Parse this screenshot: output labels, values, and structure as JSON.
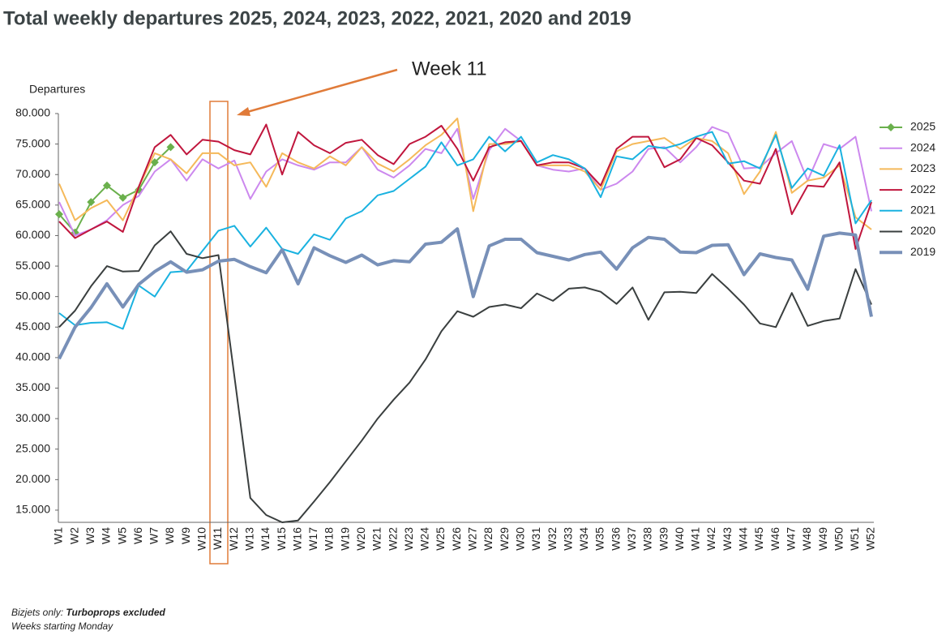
{
  "chart_data": {
    "type": "line",
    "title": "Total weekly departures 2025, 2024, 2023, 2022, 2021, 2020 and 2019",
    "y_label": "Departures",
    "annotation": "Week 11",
    "footnote": {
      "prefix": "Bizjets only:",
      "emphasis": "Turboprops excluded",
      "line2": "Weeks starting Monday"
    },
    "categories": [
      "W1",
      "W2",
      "W3",
      "W4",
      "W5",
      "W6",
      "W7",
      "W8",
      "W9",
      "W10",
      "W11",
      "W12",
      "W13",
      "W14",
      "W15",
      "W16",
      "W17",
      "W18",
      "W19",
      "W20",
      "W21",
      "W22",
      "W23",
      "W24",
      "W25",
      "W26",
      "W27",
      "W28",
      "W29",
      "W30",
      "W31",
      "W32",
      "W33",
      "W34",
      "W35",
      "W36",
      "W37",
      "W38",
      "W39",
      "W40",
      "W41",
      "W42",
      "W43",
      "W44",
      "W45",
      "W46",
      "W47",
      "W48",
      "W49",
      "W50",
      "W51",
      "W52"
    ],
    "ylim": [
      13000,
      80000
    ],
    "yticks": [
      {
        "value": 15000,
        "label": "15.000"
      },
      {
        "value": 20000,
        "label": "20.000"
      },
      {
        "value": 25000,
        "label": "25.000"
      },
      {
        "value": 30000,
        "label": "30.000"
      },
      {
        "value": 35000,
        "label": "35.000"
      },
      {
        "value": 40000,
        "label": "40.000"
      },
      {
        "value": 45000,
        "label": "45.000"
      },
      {
        "value": 50000,
        "label": "50.000"
      },
      {
        "value": 55000,
        "label": "55.000"
      },
      {
        "value": 60000,
        "label": "60.000"
      },
      {
        "value": 65000,
        "label": "65.000"
      },
      {
        "value": 70000,
        "label": "70.000"
      },
      {
        "value": 75000,
        "label": "75.000"
      },
      {
        "value": 80000,
        "label": "80.000"
      }
    ],
    "grid": false,
    "legend": "right",
    "series": [
      {
        "name": "2025",
        "color": "#6ab04c",
        "marker": "diamond",
        "values": [
          63500,
          60500,
          65500,
          68200,
          66200,
          67500,
          72000,
          74500,
          null,
          null,
          null,
          null,
          null,
          null,
          null,
          null,
          null,
          null,
          null,
          null,
          null,
          null,
          null,
          null,
          null,
          null,
          null,
          null,
          null,
          null,
          null,
          null,
          null,
          null,
          null,
          null,
          null,
          null,
          null,
          null,
          null,
          null,
          null,
          null,
          null,
          null,
          null,
          null,
          null,
          null,
          null,
          null
        ]
      },
      {
        "name": "2024",
        "color": "#cc88ee",
        "values": [
          65500,
          60000,
          61000,
          62500,
          65000,
          66500,
          70500,
          72500,
          69000,
          72500,
          71000,
          72300,
          66000,
          70500,
          72500,
          71500,
          70800,
          72000,
          72000,
          74500,
          70800,
          69500,
          71500,
          74200,
          73500,
          77500,
          66000,
          74000,
          77500,
          75500,
          71500,
          70800,
          70500,
          71000,
          67500,
          68500,
          70500,
          74200,
          74500,
          72000,
          74500,
          77800,
          76800,
          71000,
          71200,
          73500,
          75500,
          69000,
          75000,
          74200,
          76200,
          64000
        ]
      },
      {
        "name": "2023",
        "color": "#f5b95a",
        "values": [
          68500,
          62500,
          64500,
          65800,
          62500,
          68000,
          73500,
          72500,
          70200,
          73500,
          73500,
          71500,
          72000,
          68000,
          73500,
          72000,
          71000,
          73000,
          71500,
          74500,
          71800,
          70500,
          72500,
          74800,
          76500,
          79200,
          64000,
          75000,
          75000,
          75500,
          71500,
          71500,
          71500,
          70500,
          67500,
          73800,
          75000,
          75500,
          76000,
          74200,
          76000,
          75500,
          73500,
          66800,
          70500,
          77000,
          67000,
          69000,
          69500,
          71500,
          63000,
          61000
        ]
      },
      {
        "name": "2022",
        "color": "#c0163d",
        "values": [
          62300,
          59600,
          61000,
          62300,
          60600,
          68000,
          74500,
          76500,
          73300,
          75700,
          75400,
          74000,
          73300,
          78200,
          70000,
          77000,
          74800,
          73500,
          75200,
          75700,
          73200,
          71700,
          75000,
          76200,
          78000,
          74200,
          69000,
          74500,
          75300,
          75500,
          71500,
          72000,
          72000,
          71000,
          68200,
          74200,
          76200,
          76200,
          71200,
          72500,
          76000,
          74800,
          72000,
          69000,
          68500,
          74200,
          63500,
          68200,
          68000,
          72000,
          57800,
          65500
        ]
      },
      {
        "name": "2021",
        "color": "#1ab2e0",
        "values": [
          47300,
          45300,
          45700,
          45800,
          44700,
          51800,
          50000,
          54000,
          54200,
          57500,
          60800,
          61600,
          58200,
          61300,
          57800,
          57000,
          60200,
          59300,
          62800,
          64000,
          66600,
          67300,
          69300,
          71300,
          75300,
          71500,
          72500,
          76200,
          73800,
          76200,
          72000,
          73200,
          72500,
          71000,
          66300,
          73000,
          72500,
          74700,
          74300,
          75000,
          76200,
          77000,
          71800,
          72200,
          71000,
          76500,
          67800,
          71000,
          69800,
          74800,
          62000,
          65800
        ]
      },
      {
        "name": "2020",
        "color": "#3a3f3f",
        "values": [
          45000,
          47700,
          51700,
          55000,
          54100,
          54200,
          58400,
          60700,
          57000,
          56300,
          56800,
          37000,
          17000,
          14200,
          13000,
          13300,
          16400,
          19600,
          23000,
          26400,
          30000,
          33100,
          35900,
          39700,
          44300,
          47600,
          46700,
          48300,
          48700,
          48100,
          50500,
          49300,
          51300,
          51500,
          50800,
          48800,
          51500,
          46200,
          50700,
          50800,
          50600,
          53700,
          51300,
          48700,
          45600,
          45000,
          50600,
          45200,
          46000,
          46400,
          54500,
          48700
        ]
      },
      {
        "name": "2019",
        "color": "#7890b8",
        "width": 4,
        "values": [
          39800,
          45000,
          48200,
          52100,
          48300,
          52000,
          54100,
          55700,
          54000,
          54400,
          55800,
          56100,
          54900,
          53900,
          57700,
          52100,
          58000,
          56700,
          55600,
          56800,
          55200,
          55900,
          55700,
          58600,
          58900,
          61100,
          50000,
          58300,
          59400,
          59400,
          57200,
          56600,
          56000,
          56900,
          57300,
          54500,
          58000,
          59700,
          59400,
          57300,
          57200,
          58400,
          58500,
          53600,
          57000,
          56400,
          56000,
          51200,
          59900,
          60400,
          60100,
          46700
        ]
      }
    ]
  }
}
